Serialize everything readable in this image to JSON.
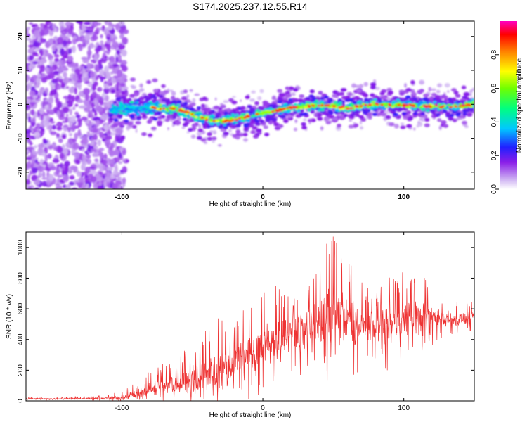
{
  "title": "S174.2025.237.12.55.R14",
  "colors": {
    "snr_line": "#ee3333",
    "frame": "#000000",
    "background": "#ffffff"
  },
  "chart_data": [
    {
      "type": "heatmap",
      "title": "S174.2025.237.12.55.R14",
      "xlabel": "Height of straight line (km)",
      "ylabel": "Frequency (Hz)",
      "xlim": [
        -168,
        150
      ],
      "ylim": [
        -25,
        24.5
      ],
      "xticks": [
        -100,
        0,
        100
      ],
      "xtick_labels": [
        "-100",
        "0",
        "100"
      ],
      "yticks": [
        20,
        10,
        0,
        -10,
        -20
      ],
      "ytick_labels": [
        "20",
        "10",
        "0",
        "-10",
        "-20"
      ],
      "colorbar": {
        "label": "Normalized spectral amplitude",
        "range": [
          0,
          1
        ],
        "ticks": [
          0.0,
          0.2,
          0.4,
          0.6,
          0.8
        ],
        "tick_labels": [
          "0.0",
          "0.2",
          "0.4",
          "0.6",
          "0.8"
        ],
        "colormap": "rainbow (white, purple, blue, cyan, green, yellow, orange, red, magenta)"
      },
      "ridge_frequency_trace": {
        "height_km": [
          -105,
          -90,
          -75,
          -60,
          -50,
          -40,
          -30,
          -20,
          -10,
          0,
          10,
          20,
          30,
          40,
          50,
          60,
          70,
          80,
          90,
          100,
          110,
          120,
          130,
          140,
          150
        ],
        "frequency_hz": [
          -1.5,
          -1.2,
          -1.0,
          -1.5,
          -3.0,
          -4.5,
          -5.2,
          -4.5,
          -3.5,
          -2.5,
          -1.8,
          -1.0,
          -0.5,
          -0.2,
          -0.5,
          -1.0,
          -0.5,
          0.0,
          -0.2,
          -0.2,
          -0.5,
          -0.5,
          -0.8,
          -0.5,
          0.0
        ]
      },
      "noise_region_km": [
        -168,
        -105
      ]
    },
    {
      "type": "line",
      "title": "",
      "xlabel": "Height of straight line (km)",
      "ylabel": "SNR (10 * v/v)",
      "xlim": [
        -168,
        150
      ],
      "ylim": [
        0,
        1100
      ],
      "xticks": [
        -100,
        0,
        100
      ],
      "xtick_labels": [
        "-100",
        "0",
        "100"
      ],
      "yticks": [
        0,
        200,
        400,
        600,
        800,
        1000
      ],
      "ytick_labels": [
        "0",
        "200",
        "400",
        "600",
        "800",
        "1000"
      ],
      "series": [
        {
          "name": "SNR",
          "envelope_x_km": [
            -168,
            -150,
            -120,
            -100,
            -90,
            -80,
            -60,
            -40,
            -20,
            -10,
            0,
            10,
            20,
            30,
            40,
            50,
            60,
            70,
            80,
            90,
            100,
            110,
            120,
            130,
            140,
            150
          ],
          "median_snr": [
            15,
            15,
            15,
            20,
            50,
            70,
            110,
            170,
            230,
            300,
            350,
            400,
            430,
            480,
            520,
            540,
            520,
            480,
            470,
            480,
            520,
            540,
            550,
            540,
            530,
            540
          ],
          "peak_snr": [
            25,
            25,
            30,
            60,
            140,
            200,
            300,
            500,
            600,
            650,
            770,
            750,
            700,
            850,
            950,
            1100,
            930,
            800,
            700,
            820,
            850,
            870,
            760,
            660,
            640,
            650
          ]
        }
      ]
    }
  ]
}
